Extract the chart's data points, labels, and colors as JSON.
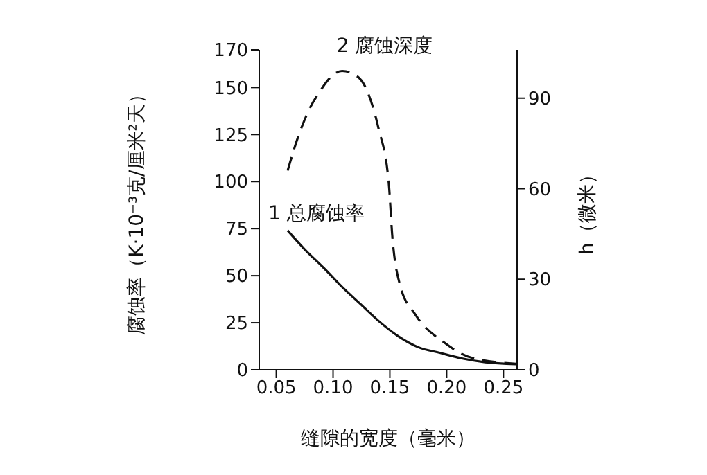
{
  "chart_data": {
    "type": "line",
    "xlabel": "缝隙的宽度（毫米）",
    "ylabel": "腐蚀率（K·10⁻³克/厘米²天）",
    "y2label": "h（微米）",
    "xlim": [
      0.035,
      0.262
    ],
    "xticks": [
      {
        "value": 0.05,
        "label": "0.05"
      },
      {
        "value": 0.1,
        "label": "0.10"
      },
      {
        "value": 0.15,
        "label": "0.15"
      },
      {
        "value": 0.2,
        "label": "0.20"
      },
      {
        "value": 0.25,
        "label": "0.25"
      }
    ],
    "ylim": [
      0,
      170
    ],
    "yticks": [
      0,
      25,
      50,
      75,
      100,
      125,
      150,
      170
    ],
    "y2lim": [
      0,
      106
    ],
    "y2ticks": [
      0,
      30,
      60,
      90
    ],
    "marker": "none",
    "series": [
      {
        "name": "1 总腐蚀率",
        "color": "#111111",
        "line_style": "solid",
        "x": [
          0.06,
          0.075,
          0.092,
          0.108,
          0.124,
          0.14,
          0.157,
          0.175,
          0.194,
          0.214,
          0.234,
          0.261
        ],
        "values": [
          74,
          64,
          54,
          44,
          35,
          26,
          18,
          12,
          9,
          6,
          4,
          3
        ]
      },
      {
        "name": "2 腐蚀深度",
        "color": "#111111",
        "line_style": "dashed",
        "axis": "y2",
        "x": [
          0.06,
          0.07,
          0.08,
          0.088,
          0.098,
          0.108,
          0.118,
          0.128,
          0.14,
          0.149,
          0.152,
          0.159,
          0.173,
          0.198,
          0.222,
          0.261
        ],
        "values": [
          66,
          78,
          87,
          92,
          97,
          99,
          98,
          94,
          80,
          62,
          45,
          28,
          18,
          9,
          4,
          2
        ]
      }
    ]
  }
}
